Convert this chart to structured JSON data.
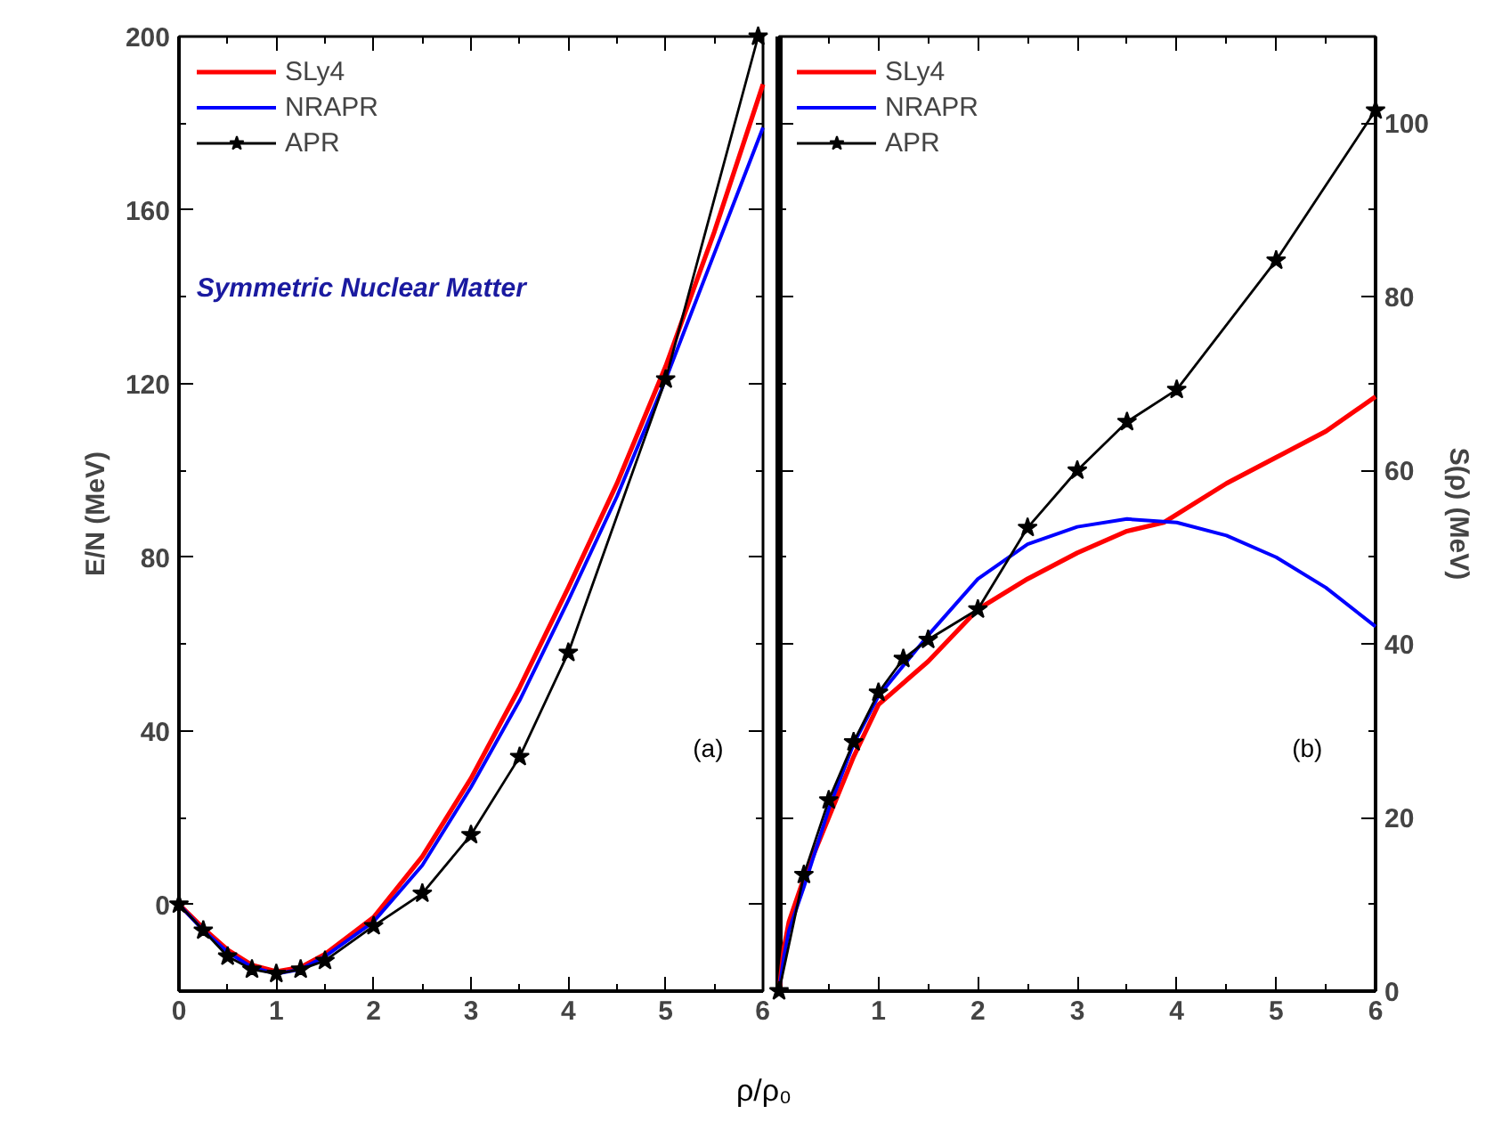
{
  "chart_data": [
    {
      "type": "line",
      "ylabel": "E/N (MeV)",
      "xlabel": "ρ/ρ₀",
      "xlim": [
        0,
        6
      ],
      "ylim": [
        -20,
        200
      ],
      "xticks": [
        0,
        1,
        2,
        3,
        4,
        5,
        6
      ],
      "yticks": [
        0,
        40,
        80,
        120,
        160,
        200
      ],
      "legend": "top left",
      "grid": false,
      "annotations": [
        "Symmetric Nuclear Matter",
        "(a)"
      ],
      "series": [
        {
          "name": "SLy4",
          "color": "#ff0000",
          "marker": "none",
          "x": [
            0,
            0.25,
            0.5,
            0.75,
            1,
            1.25,
            1.5,
            2,
            2.5,
            3,
            3.5,
            4,
            4.5,
            5,
            5.5,
            6
          ],
          "values": [
            0,
            -5.5,
            -10.5,
            -14,
            -15.5,
            -14.5,
            -11.5,
            -3,
            11,
            29,
            50,
            73,
            97,
            124,
            155,
            189
          ]
        },
        {
          "name": "NRAPR",
          "color": "#0000ff",
          "marker": "none",
          "x": [
            0,
            0.25,
            0.5,
            0.75,
            1,
            1.25,
            1.5,
            2,
            2.5,
            3,
            3.5,
            4,
            4.5,
            5,
            5.5,
            6
          ],
          "values": [
            0,
            -6,
            -11,
            -14.5,
            -16,
            -15,
            -12,
            -4,
            9,
            27,
            47,
            70,
            94,
            121,
            150,
            179
          ]
        },
        {
          "name": "APR",
          "color": "#000000",
          "marker": "star",
          "x": [
            0,
            0.25,
            0.5,
            0.75,
            1,
            1.25,
            1.5,
            2,
            2.5,
            3,
            3.5,
            4,
            5,
            5.95
          ],
          "values": [
            0,
            -6,
            -12,
            -15,
            -16,
            -15,
            -13,
            -5,
            2.5,
            16,
            34,
            58,
            121,
            200
          ]
        }
      ]
    },
    {
      "type": "line",
      "ylabel": "S(ρ) (MeV)",
      "xlim": [
        0,
        6
      ],
      "ylim": [
        0,
        110
      ],
      "xticks": [
        {
          "value": 0,
          "label": null
        },
        1,
        2,
        3,
        4,
        5,
        6
      ],
      "yticks": [
        0,
        20,
        40,
        60,
        80,
        100
      ],
      "legend": "top left",
      "grid": false,
      "annotations": [
        "(b)"
      ],
      "series": [
        {
          "name": "SLy4",
          "color": "#ff0000",
          "marker": "none",
          "x": [
            0,
            0.05,
            0.1,
            0.25,
            0.5,
            0.75,
            1,
            1.5,
            2,
            2.5,
            3,
            3.5,
            3.87,
            4.5,
            5,
            5.5,
            6
          ],
          "values": [
            0,
            5,
            8,
            13,
            20,
            27,
            33,
            38,
            44,
            47.5,
            50.5,
            53,
            54,
            58.5,
            61.5,
            64.5,
            68.5
          ]
        },
        {
          "name": "NRAPR",
          "color": "#0000ff",
          "marker": "none",
          "x": [
            0,
            0.05,
            0.1,
            0.25,
            0.5,
            0.75,
            1,
            1.5,
            2,
            2.5,
            3,
            3.5,
            4,
            4.5,
            5,
            5.5,
            6
          ],
          "values": [
            0,
            4,
            7,
            12,
            21,
            28.5,
            34,
            41,
            47.5,
            51.5,
            53.5,
            54.4,
            54,
            52.5,
            50,
            46.5,
            42
          ]
        },
        {
          "name": "APR",
          "color": "#000000",
          "marker": "star",
          "x": [
            0,
            0.25,
            0.5,
            0.75,
            1,
            1.25,
            1.5,
            2,
            2.5,
            3,
            3.5,
            4,
            5,
            6
          ],
          "values": [
            0,
            13.4,
            22,
            28.7,
            34.4,
            38.3,
            40.5,
            44,
            53.4,
            60,
            65.6,
            69.3,
            84.2,
            101.5
          ]
        }
      ]
    }
  ]
}
